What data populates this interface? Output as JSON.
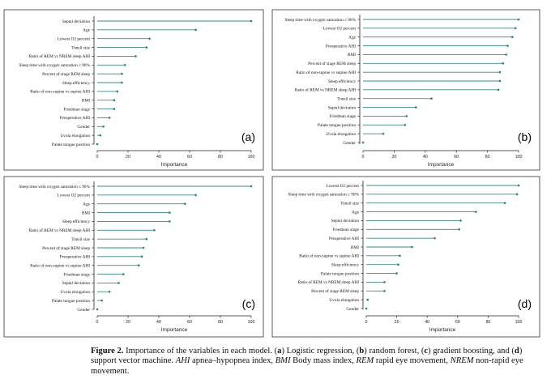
{
  "chart_data": [
    {
      "type": "lollipop",
      "panel_label": "(a)",
      "model": "Logistic regression",
      "xlabel": "Importance",
      "xlim": [
        0,
        100
      ],
      "xticks": [
        "0",
        "20",
        "40",
        "60",
        "80",
        "100"
      ],
      "categories": [
        "Septal deviation",
        "Age",
        "Lowest O2 percent",
        "Tonsil size",
        "Ratio of REM vs NREM sleep AHI",
        "Sleep time with oxygen saturation ≤ 90%",
        "Percent of stage REM sleep",
        "Sleep efficiency",
        "Ratio of non-supine vs supine AHI",
        "BMI",
        "Friedman stage",
        "Preoperative AHI",
        "Gender",
        "Uvula elongation",
        "Palate tongue position"
      ],
      "values": [
        100,
        64,
        34,
        32,
        25,
        18,
        16,
        16,
        13,
        11,
        11,
        8,
        4,
        2,
        0
      ]
    },
    {
      "type": "lollipop",
      "panel_label": "(b)",
      "model": "random forest",
      "xlabel": "Importance",
      "xlim": [
        0,
        100
      ],
      "xticks": [
        "0",
        "20",
        "40",
        "60",
        "80",
        "100"
      ],
      "categories": [
        "Sleep time with oxygen saturation ≤ 90%",
        "Lowest O2 percent",
        "Age",
        "Preoperative AHI",
        "BMI",
        "Percent of stage REM sleep",
        "Ratio of non-supine vs supine AHI",
        "Sleep efficiency",
        "Ratio of REM vs NREM sleep AHI",
        "Tonsil size",
        "Septal deviation",
        "Friedman stage",
        "Palate tongue position",
        "Uvula elongation",
        "Gender"
      ],
      "values": [
        100,
        98,
        96,
        93,
        92,
        90,
        88,
        88,
        87,
        44,
        34,
        28,
        27,
        13,
        0
      ]
    },
    {
      "type": "lollipop",
      "panel_label": "(c)",
      "model": "gradient boosting",
      "xlabel": "Importance",
      "xlim": [
        0,
        100
      ],
      "xticks": [
        "0",
        "20",
        "40",
        "60",
        "80",
        "100"
      ],
      "categories": [
        "Sleep time with oxygen saturation ≤ 90%",
        "Lowest O2 percent",
        "Age",
        "BMI",
        "Sleep efficiency",
        "Ratio of REM vs NREM sleep AHI",
        "Tonsil size",
        "Percent of stage REM sleep",
        "Preoperative AHI",
        "Ratio of non-supine vs supine AHI",
        "Friedman stage",
        "Septal deviation",
        "Uvula elongation",
        "Palate tongue position",
        "Gender"
      ],
      "values": [
        100,
        64,
        57,
        47,
        47,
        37,
        32,
        30,
        29,
        27,
        17,
        14,
        8,
        3,
        0
      ]
    },
    {
      "type": "lollipop",
      "panel_label": "(d)",
      "model": "support vector machine",
      "xlabel": "Importance",
      "xlim": [
        0,
        100
      ],
      "xticks": [
        "0",
        "20",
        "40",
        "60",
        "80",
        "100"
      ],
      "categories": [
        "Lowest O2 percent",
        "Sleep time with oxygen saturation ≤ 90%",
        "Tonsil size",
        "Age",
        "Septal deviation",
        "Friedman stage",
        "Preoperative AHI",
        "BMI",
        "Ratio of non-supine vs supine AHI",
        "Sleep efficiency",
        "Palate tongue position",
        "Ratio of REM vs NREM sleep AHI",
        "Percent of stage REM sleep",
        "Uvula elongation",
        "Gender"
      ],
      "values": [
        100,
        99,
        91,
        72,
        62,
        61,
        45,
        30,
        22,
        21,
        20,
        12,
        12,
        1,
        0
      ]
    }
  ],
  "caption": {
    "figure_label": "Figure 2.",
    "text_1": " Importance of the variables in each model. (",
    "a": "a",
    "text_2": ") Logistic regression, (",
    "b": "b",
    "text_3": ") random forest, (",
    "c": "c",
    "text_4": ") gradient boosting, and (",
    "d": "d",
    "text_5": ") support vector machine. ",
    "ahi": "AHI",
    "text_6": " apnea–hypopnea index, ",
    "bmi": "BMI",
    "text_7": " Body mass index, ",
    "rem": "REM",
    "text_8": " rapid eye movement, ",
    "nrem": "NREM",
    "text_9": " non-rapid eye movement."
  }
}
